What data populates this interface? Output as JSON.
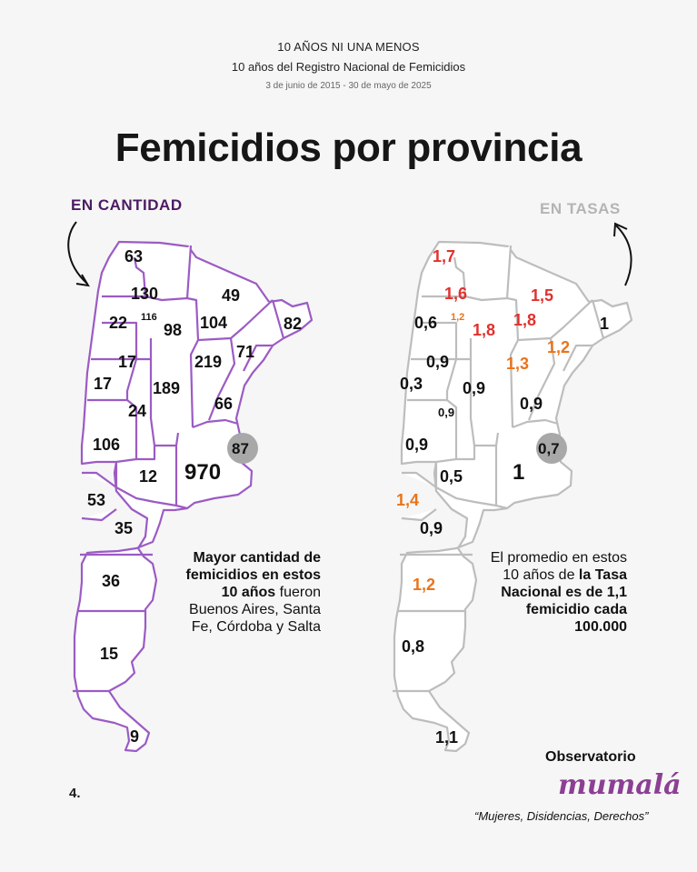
{
  "header": {
    "line1": "10 AÑOS NI UNA MENOS",
    "line2": "10 años del Registro Nacional de Femicidios",
    "line3": "3 de junio de 2015 - 30 de mayo de 2025"
  },
  "title": "Femicidios por provincia",
  "left_map": {
    "label": "EN CANTIDAD",
    "values": {
      "jujuy": "63",
      "salta": "130",
      "tucuman": "116",
      "catamarca": "22",
      "santiago": "98",
      "chaco": "104",
      "formosa": "49",
      "misiones": "82",
      "corrientes": "71",
      "la_rioja": "17",
      "san_juan": "17",
      "cordoba": "189",
      "santa_fe": "219",
      "entre_rios": "66",
      "san_luis": "24",
      "mendoza": "106",
      "caba": "87",
      "buenos_aires": "970",
      "la_pampa": "12",
      "neuquen": "53",
      "rio_negro": "35",
      "chubut": "36",
      "santa_cruz": "15",
      "tierra_del_fuego": "9"
    },
    "note": {
      "bold": "Mayor cantidad de femicidios en estos 10 años",
      "rest": "fueron Buenos Aires, Santa Fe, Córdoba y Salta"
    }
  },
  "right_map": {
    "label": "EN TASAS",
    "values": {
      "jujuy": "1,7",
      "salta": "1,6",
      "tucuman": "1,2",
      "catamarca": "0,6",
      "santiago": "1,8",
      "chaco": "1,8",
      "formosa": "1,5",
      "misiones": "1",
      "corrientes": "1,2",
      "la_rioja": "0,9",
      "san_juan": "0,3",
      "cordoba": "0,9",
      "santa_fe": "1,3",
      "entre_rios": "0,9",
      "san_luis": "0,9",
      "mendoza": "0,9",
      "caba": "0,7",
      "buenos_aires": "1",
      "la_pampa": "0,5",
      "neuquen": "1,4",
      "rio_negro": "0,9",
      "chubut": "1,2",
      "santa_cruz": "0,8",
      "tierra_del_fuego": "1,1"
    },
    "note": {
      "start": "El promedio en estos 10 años de",
      "bold": "la Tasa Nacional es de 1,1 femicidio cada 100.000"
    }
  },
  "colors": {
    "left_outline": "#9b5bc4",
    "right_outline": "#bdbdbd",
    "rate_high": "#e0312d",
    "rate_mid": "#e8741c",
    "caba_circle": "#a8a8a8",
    "label_purple": "#4b1b63"
  },
  "footer": {
    "page": "4.",
    "observatorio": "Observatorio",
    "logo": "mumalá",
    "slogan": "“Mujeres, Disidencias, Derechos”"
  }
}
